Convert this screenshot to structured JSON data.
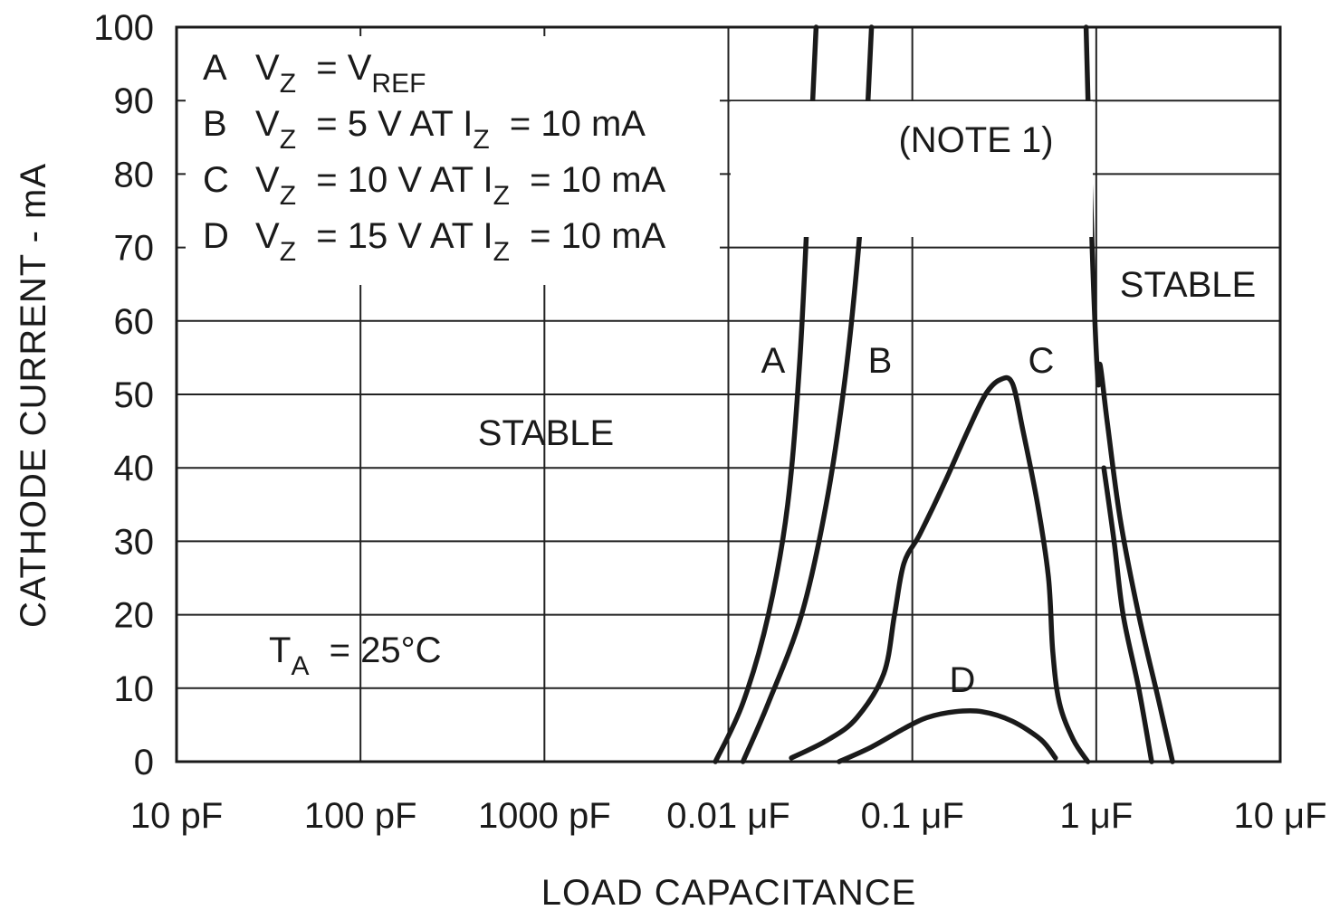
{
  "chart_data": {
    "type": "line",
    "x_scale": "log",
    "xlabel": "LOAD CAPACITANCE",
    "ylabel": "CATHODE CURRENT - mA",
    "x_ticks": [
      {
        "value": 1e-11,
        "label": "10 pF"
      },
      {
        "value": 1e-10,
        "label": "100 pF"
      },
      {
        "value": 1e-09,
        "label": "1000 pF"
      },
      {
        "value": 1e-08,
        "label": "0.01 μF"
      },
      {
        "value": 1e-07,
        "label": "0.1 μF"
      },
      {
        "value": 1e-06,
        "label": "1 μF"
      },
      {
        "value": 1e-05,
        "label": "10 μF"
      }
    ],
    "y_ticks": [
      0,
      10,
      20,
      30,
      40,
      50,
      60,
      70,
      80,
      90,
      100
    ],
    "xlim": [
      1e-11,
      1e-05
    ],
    "ylim": [
      0,
      100
    ],
    "grid": true,
    "legend": [
      {
        "key": "A",
        "text": "V_Z = V_REF"
      },
      {
        "key": "B",
        "text": "V_Z = 5 V AT I_Z = 10 mA"
      },
      {
        "key": "C",
        "text": "V_Z = 10 V AT I_Z = 10 mA"
      },
      {
        "key": "D",
        "text": "V_Z = 15 V AT I_Z = 10 mA"
      }
    ],
    "annotations": {
      "stable_left": "STABLE",
      "stable_right": "STABLE",
      "note": "(NOTE 1)",
      "temperature": "T_A = 25°C"
    },
    "series": [
      {
        "name": "A",
        "left_boundary": [
          [
            8.5e-09,
            0
          ],
          [
            1.2e-08,
            8
          ],
          [
            1.65e-08,
            20
          ],
          [
            2.1e-08,
            35
          ],
          [
            2.45e-08,
            55
          ],
          [
            2.75e-08,
            80
          ],
          [
            3e-08,
            100
          ]
        ],
        "right_boundary": [
          [
            2.6e-06,
            0
          ],
          [
            2.2e-06,
            8
          ],
          [
            1.7e-06,
            20
          ],
          [
            1.35e-06,
            33
          ],
          [
            1.15e-06,
            46
          ],
          [
            1.05e-06,
            54
          ],
          [
            1.02e-06,
            52
          ],
          [
            9.5e-07,
            70
          ],
          [
            8.8e-07,
            100
          ]
        ]
      },
      {
        "name": "B",
        "left_boundary": [
          [
            1.2e-08,
            0
          ],
          [
            1.65e-08,
            8
          ],
          [
            2.5e-08,
            20
          ],
          [
            3.4e-08,
            35
          ],
          [
            4.3e-08,
            52
          ],
          [
            5.1e-08,
            70
          ],
          [
            5.6e-08,
            85
          ],
          [
            6e-08,
            100
          ]
        ],
        "right_boundary": [
          [
            2e-06,
            0
          ],
          [
            1.7e-06,
            10
          ],
          [
            1.4e-06,
            20
          ],
          [
            1.25e-06,
            30
          ],
          [
            1.1e-06,
            40
          ]
        ]
      },
      {
        "name": "C",
        "points": [
          [
            2.2e-08,
            0.5
          ],
          [
            3.5e-08,
            3
          ],
          [
            5e-08,
            6
          ],
          [
            7e-08,
            12
          ],
          [
            8e-08,
            20
          ],
          [
            9e-08,
            27
          ],
          [
            1.1e-07,
            31
          ],
          [
            1.5e-07,
            38
          ],
          [
            2e-07,
            45
          ],
          [
            2.5e-07,
            50
          ],
          [
            3e-07,
            52
          ],
          [
            3.5e-07,
            51.5
          ],
          [
            4e-07,
            45
          ],
          [
            4.8e-07,
            35
          ],
          [
            5.5e-07,
            25
          ],
          [
            5.8e-07,
            15
          ],
          [
            6.3e-07,
            8
          ],
          [
            7.5e-07,
            3
          ],
          [
            9e-07,
            0
          ]
        ]
      },
      {
        "name": "D",
        "points": [
          [
            4e-08,
            0
          ],
          [
            6e-08,
            2
          ],
          [
            9e-08,
            4.5
          ],
          [
            1.2e-07,
            6
          ],
          [
            1.7e-07,
            6.8
          ],
          [
            2.4e-07,
            6.8
          ],
          [
            3.5e-07,
            5.5
          ],
          [
            5e-07,
            3
          ],
          [
            6e-07,
            0.5
          ]
        ]
      }
    ]
  }
}
